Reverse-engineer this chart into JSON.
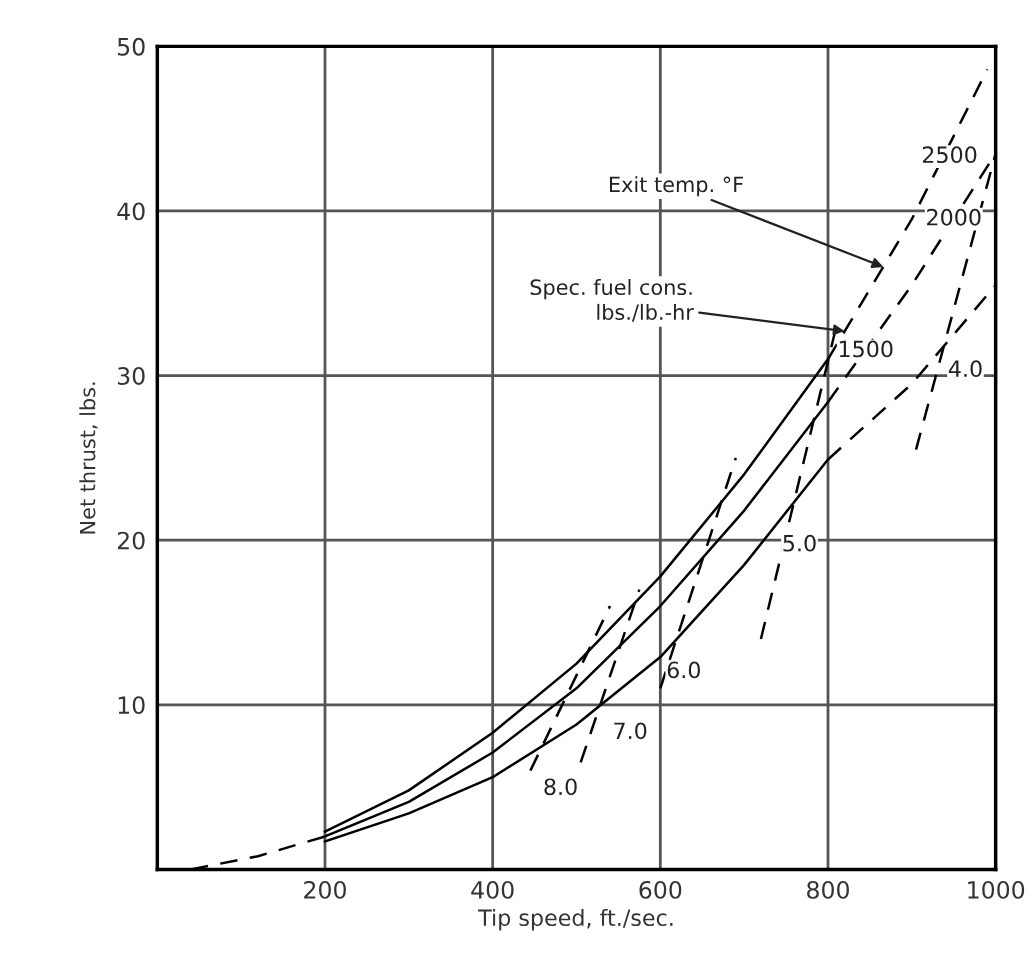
{
  "chart_data": {
    "type": "line",
    "xlabel": "Tip speed, ft./sec.",
    "ylabel": "Net thrust, lbs.",
    "xlim": [
      0,
      1000
    ],
    "ylim": [
      0,
      50
    ],
    "xticks": [
      {
        "value": 0,
        "label": null
      },
      200,
      400,
      600,
      800,
      1000
    ],
    "yticks": [
      {
        "value": 0,
        "label": null
      },
      10,
      20,
      30,
      40,
      50
    ],
    "grid": true,
    "marker": "none",
    "series": [
      {
        "color": "#000000",
        "line_style": "solid",
        "x": [
          200,
          300,
          400,
          500,
          600,
          700,
          800
        ],
        "values": [
          2.3,
          4.8,
          8.3,
          12.5,
          17.8,
          24,
          31
        ]
      },
      {
        "color": "#000000",
        "line_style": "solid",
        "x": [
          200,
          300,
          400,
          500,
          600,
          700,
          800
        ],
        "values": [
          2.0,
          4.1,
          7.1,
          11,
          16,
          21.8,
          28.4
        ]
      },
      {
        "color": "#000000",
        "line_style": "solid",
        "x": [
          200,
          300,
          400,
          500,
          600,
          700,
          800
        ],
        "values": [
          1.7,
          3.4,
          5.6,
          8.8,
          12.9,
          18.5,
          24.9
        ]
      },
      {
        "color": "#000000",
        "line_style": "dashed",
        "x": [
          800,
          900,
          990
        ],
        "values": [
          31,
          39.5,
          48.6
        ]
      },
      {
        "color": "#000000",
        "line_style": "dashed",
        "x": [
          800,
          900,
          1000
        ],
        "values": [
          28.4,
          35.5,
          43.5
        ]
      },
      {
        "color": "#000000",
        "line_style": "dashed",
        "x": [
          800,
          900,
          1000
        ],
        "values": [
          24.9,
          29.5,
          35.5
        ]
      },
      {
        "color": "#000000",
        "line_style": "dashed",
        "x": [
          40,
          120,
          200
        ],
        "values": [
          0,
          0.8,
          2.0
        ]
      },
      {
        "color": "#000000",
        "line_style": "dashed",
        "x": [
          445,
          540
        ],
        "values": [
          6,
          16
        ]
      },
      {
        "color": "#000000",
        "line_style": "dashed",
        "x": [
          505,
          575
        ],
        "values": [
          6.5,
          17
        ]
      },
      {
        "color": "#000000",
        "line_style": "dashed",
        "x": [
          600,
          690
        ],
        "values": [
          11,
          25
        ]
      },
      {
        "color": "#000000",
        "line_style": "dashed",
        "x": [
          720,
          810
        ],
        "values": [
          14,
          33
        ]
      },
      {
        "color": "#000000",
        "line_style": "dashed",
        "x": [
          905,
          1000
        ],
        "values": [
          25.5,
          43.5
        ]
      }
    ],
    "annotations": [
      {
        "text": "Exit temp. °F",
        "x": 866,
        "y": 36.6
      },
      {
        "text": "Spec. fuel cons.\nlbs./lb.-hr",
        "x": 820,
        "y": 32.7
      },
      {
        "text": "2500",
        "x": 945,
        "y": 43.3
      },
      {
        "text": "2000",
        "x": 950,
        "y": 39.5
      },
      {
        "text": "1500",
        "x": 845,
        "y": 31.5
      },
      {
        "text": "4.0",
        "x": 964,
        "y": 30.3
      },
      {
        "text": "5.0",
        "x": 766,
        "y": 19.7
      },
      {
        "text": "6.0",
        "x": 628,
        "y": 12
      },
      {
        "text": "7.0",
        "x": 564,
        "y": 8.3
      },
      {
        "text": "8.0",
        "x": 481,
        "y": 4.9
      }
    ]
  }
}
